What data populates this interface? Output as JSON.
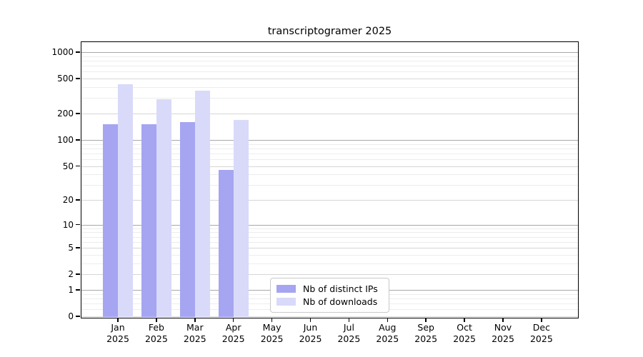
{
  "chart_data": {
    "type": "bar",
    "title": "transcriptogramer 2025",
    "year_label": "2025",
    "categories": [
      "Jan",
      "Feb",
      "Mar",
      "Apr",
      "May",
      "Jun",
      "Jul",
      "Aug",
      "Sep",
      "Oct",
      "Nov",
      "Dec"
    ],
    "series": [
      {
        "name": "Nb of distinct IPs",
        "color": "#a5a5f2",
        "values": [
          150,
          150,
          160,
          45,
          null,
          null,
          null,
          null,
          null,
          null,
          null,
          null
        ]
      },
      {
        "name": "Nb of downloads",
        "color": "#d9daf9",
        "values": [
          430,
          290,
          365,
          170,
          null,
          null,
          null,
          null,
          null,
          null,
          null,
          null
        ]
      }
    ],
    "yscale": "log1p",
    "yticks": [
      0,
      1,
      2,
      5,
      10,
      20,
      50,
      100,
      200,
      500,
      1000
    ],
    "ylim": [
      0,
      1330
    ],
    "grid": true,
    "legend_position": "lower center"
  }
}
